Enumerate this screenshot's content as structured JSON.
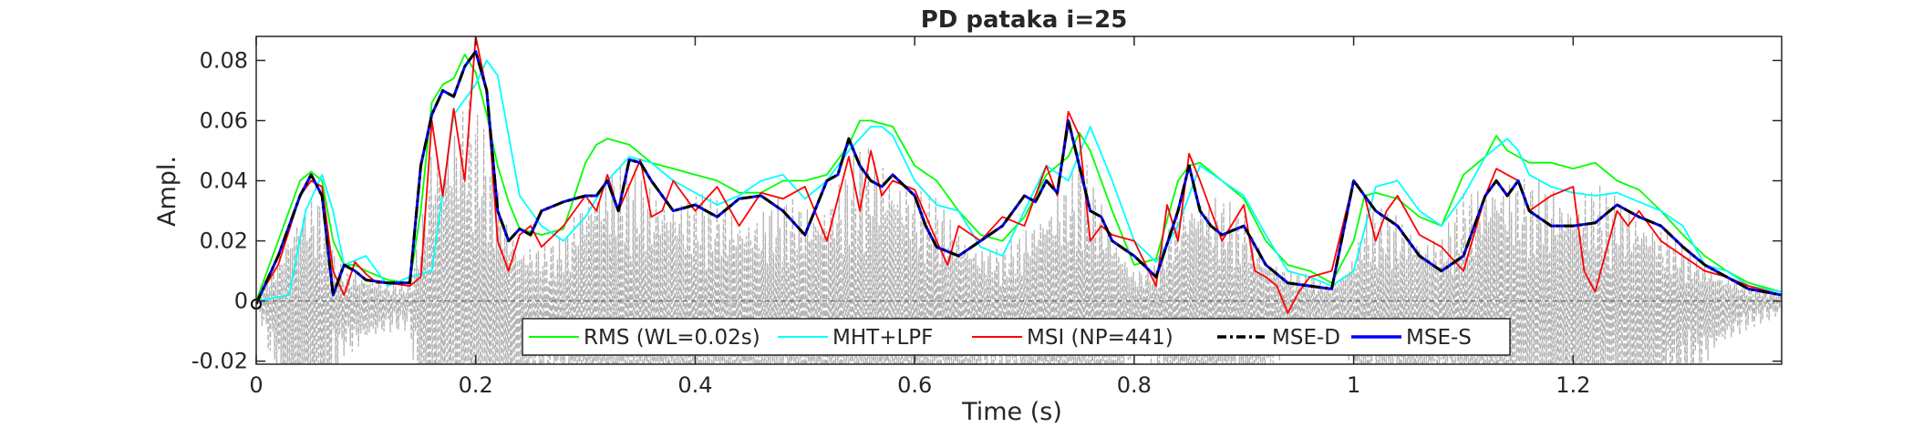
{
  "chart_data": {
    "type": "line",
    "title": "PD pataka i=25",
    "xlabel": "Time (s)",
    "ylabel": "Ampl.",
    "xlim": [
      0,
      1.39
    ],
    "ylim": [
      -0.021,
      0.088
    ],
    "xticks": [
      0,
      0.2,
      0.4,
      0.6,
      0.8,
      1,
      1.2
    ],
    "xtick_labels": [
      "0",
      "0.2",
      "0.4",
      "0.6",
      "0.8",
      "1",
      "1.2"
    ],
    "yticks": [
      -0.02,
      0,
      0.02,
      0.04,
      0.06,
      0.08
    ],
    "ytick_labels": [
      "-0.02",
      "0",
      "0.02",
      "0.04",
      "0.06",
      "0.08"
    ],
    "grid": false,
    "legend_position": "bottom-center",
    "background_signal": {
      "color": "#b4b4b4",
      "style": "dashed",
      "description_units": "amplitude"
    },
    "series": [
      {
        "name": "RMS (WL=0.02s)",
        "color": "#00ff00",
        "style": "solid",
        "x": [
          0,
          0.02,
          0.04,
          0.05,
          0.06,
          0.07,
          0.08,
          0.09,
          0.1,
          0.12,
          0.14,
          0.15,
          0.16,
          0.17,
          0.18,
          0.19,
          0.2,
          0.21,
          0.22,
          0.23,
          0.24,
          0.26,
          0.28,
          0.3,
          0.31,
          0.32,
          0.34,
          0.36,
          0.38,
          0.4,
          0.42,
          0.44,
          0.46,
          0.48,
          0.5,
          0.52,
          0.54,
          0.55,
          0.56,
          0.58,
          0.6,
          0.62,
          0.64,
          0.66,
          0.68,
          0.7,
          0.72,
          0.74,
          0.75,
          0.76,
          0.78,
          0.8,
          0.82,
          0.84,
          0.85,
          0.86,
          0.88,
          0.9,
          0.92,
          0.94,
          0.96,
          0.98,
          1,
          1.01,
          1.02,
          1.04,
          1.06,
          1.08,
          1.1,
          1.12,
          1.13,
          1.14,
          1.16,
          1.18,
          1.2,
          1.22,
          1.24,
          1.26,
          1.28,
          1.3,
          1.32,
          1.34,
          1.36,
          1.39
        ],
        "y": [
          0,
          0.02,
          0.04,
          0.043,
          0.04,
          0.02,
          0.012,
          0.012,
          0.01,
          0.007,
          0.006,
          0.03,
          0.066,
          0.072,
          0.074,
          0.082,
          0.076,
          0.062,
          0.045,
          0.033,
          0.024,
          0.022,
          0.024,
          0.046,
          0.052,
          0.054,
          0.052,
          0.046,
          0.044,
          0.042,
          0.04,
          0.036,
          0.036,
          0.04,
          0.04,
          0.042,
          0.052,
          0.06,
          0.06,
          0.058,
          0.045,
          0.04,
          0.03,
          0.022,
          0.02,
          0.028,
          0.042,
          0.048,
          0.056,
          0.05,
          0.03,
          0.012,
          0.014,
          0.04,
          0.045,
          0.046,
          0.04,
          0.034,
          0.02,
          0.012,
          0.01,
          0.006,
          0.02,
          0.035,
          0.036,
          0.034,
          0.028,
          0.025,
          0.042,
          0.048,
          0.055,
          0.05,
          0.046,
          0.046,
          0.044,
          0.046,
          0.04,
          0.037,
          0.03,
          0.022,
          0.015,
          0.01,
          0.006,
          0.003
        ]
      },
      {
        "name": "MHT+LPF",
        "color": "#00ffff",
        "style": "solid",
        "x": [
          0,
          0.03,
          0.045,
          0.06,
          0.07,
          0.08,
          0.1,
          0.12,
          0.14,
          0.16,
          0.18,
          0.2,
          0.21,
          0.22,
          0.24,
          0.26,
          0.28,
          0.3,
          0.32,
          0.34,
          0.36,
          0.38,
          0.4,
          0.42,
          0.44,
          0.46,
          0.48,
          0.5,
          0.52,
          0.54,
          0.56,
          0.57,
          0.58,
          0.6,
          0.62,
          0.64,
          0.66,
          0.68,
          0.7,
          0.72,
          0.74,
          0.76,
          0.78,
          0.8,
          0.82,
          0.84,
          0.86,
          0.88,
          0.9,
          0.92,
          0.94,
          0.96,
          0.98,
          1,
          1.02,
          1.04,
          1.06,
          1.08,
          1.1,
          1.12,
          1.14,
          1.15,
          1.16,
          1.18,
          1.2,
          1.22,
          1.24,
          1.26,
          1.28,
          1.3,
          1.32,
          1.34,
          1.36,
          1.39
        ],
        "y": [
          0,
          0.002,
          0.03,
          0.042,
          0.03,
          0.012,
          0.015,
          0.005,
          0.008,
          0.01,
          0.062,
          0.072,
          0.08,
          0.075,
          0.035,
          0.025,
          0.02,
          0.028,
          0.04,
          0.048,
          0.046,
          0.04,
          0.036,
          0.032,
          0.035,
          0.04,
          0.042,
          0.034,
          0.04,
          0.05,
          0.058,
          0.058,
          0.055,
          0.04,
          0.032,
          0.03,
          0.018,
          0.015,
          0.03,
          0.045,
          0.04,
          0.058,
          0.04,
          0.02,
          0.013,
          0.025,
          0.045,
          0.04,
          0.035,
          0.022,
          0.01,
          0.008,
          0.005,
          0.01,
          0.038,
          0.04,
          0.03,
          0.025,
          0.035,
          0.048,
          0.054,
          0.05,
          0.042,
          0.038,
          0.036,
          0.035,
          0.036,
          0.033,
          0.03,
          0.025,
          0.012,
          0.01,
          0.005,
          0.003
        ]
      },
      {
        "name": "MSI (NP=441)",
        "color": "#ff0000",
        "style": "solid",
        "x": [
          0,
          0.02,
          0.04,
          0.05,
          0.06,
          0.07,
          0.08,
          0.09,
          0.1,
          0.11,
          0.12,
          0.14,
          0.15,
          0.16,
          0.17,
          0.18,
          0.19,
          0.2,
          0.21,
          0.22,
          0.23,
          0.24,
          0.25,
          0.26,
          0.28,
          0.3,
          0.31,
          0.32,
          0.33,
          0.35,
          0.36,
          0.37,
          0.38,
          0.4,
          0.42,
          0.44,
          0.46,
          0.48,
          0.5,
          0.52,
          0.54,
          0.55,
          0.56,
          0.57,
          0.58,
          0.6,
          0.62,
          0.63,
          0.64,
          0.66,
          0.68,
          0.7,
          0.72,
          0.73,
          0.74,
          0.75,
          0.76,
          0.77,
          0.78,
          0.8,
          0.82,
          0.83,
          0.84,
          0.85,
          0.86,
          0.88,
          0.9,
          0.91,
          0.92,
          0.93,
          0.94,
          0.95,
          0.96,
          0.98,
          1,
          1.01,
          1.02,
          1.03,
          1.04,
          1.06,
          1.08,
          1.1,
          1.12,
          1.13,
          1.14,
          1.15,
          1.16,
          1.18,
          1.2,
          1.21,
          1.22,
          1.24,
          1.25,
          1.26,
          1.28,
          1.3,
          1.32,
          1.34,
          1.36,
          1.39
        ],
        "y": [
          0,
          0.012,
          0.035,
          0.04,
          0.038,
          0.01,
          0.002,
          0.013,
          0.009,
          0.006,
          0.006,
          0.005,
          0.008,
          0.06,
          0.035,
          0.064,
          0.04,
          0.088,
          0.07,
          0.02,
          0.01,
          0.022,
          0.025,
          0.018,
          0.025,
          0.035,
          0.03,
          0.042,
          0.03,
          0.047,
          0.028,
          0.03,
          0.04,
          0.03,
          0.038,
          0.025,
          0.036,
          0.034,
          0.038,
          0.02,
          0.048,
          0.03,
          0.05,
          0.035,
          0.04,
          0.037,
          0.02,
          0.012,
          0.025,
          0.02,
          0.028,
          0.025,
          0.045,
          0.035,
          0.063,
          0.055,
          0.02,
          0.025,
          0.022,
          0.02,
          0.005,
          0.032,
          0.02,
          0.049,
          0.04,
          0.02,
          0.032,
          0.01,
          0.008,
          0.005,
          -0.004,
          0.003,
          0.008,
          0.01,
          0.04,
          0.035,
          0.02,
          0.03,
          0.035,
          0.022,
          0.018,
          0.01,
          0.035,
          0.044,
          0.042,
          0.04,
          0.03,
          0.035,
          0.038,
          0.01,
          0.003,
          0.03,
          0.025,
          0.03,
          0.02,
          0.015,
          0.01,
          0.008,
          0.005,
          0.002
        ]
      },
      {
        "name": "MSE-D",
        "color": "#000000",
        "style": "dashdot",
        "x": [
          0,
          0.02,
          0.04,
          0.05,
          0.06,
          0.07,
          0.08,
          0.09,
          0.1,
          0.12,
          0.14,
          0.15,
          0.16,
          0.17,
          0.18,
          0.19,
          0.2,
          0.21,
          0.22,
          0.23,
          0.24,
          0.25,
          0.26,
          0.28,
          0.3,
          0.31,
          0.32,
          0.33,
          0.34,
          0.35,
          0.36,
          0.37,
          0.38,
          0.4,
          0.42,
          0.44,
          0.46,
          0.48,
          0.5,
          0.52,
          0.53,
          0.54,
          0.55,
          0.56,
          0.57,
          0.58,
          0.6,
          0.61,
          0.62,
          0.64,
          0.66,
          0.68,
          0.7,
          0.71,
          0.72,
          0.73,
          0.74,
          0.75,
          0.76,
          0.77,
          0.78,
          0.8,
          0.82,
          0.84,
          0.85,
          0.86,
          0.87,
          0.88,
          0.9,
          0.92,
          0.94,
          0.96,
          0.98,
          1,
          1.01,
          1.02,
          1.04,
          1.06,
          1.08,
          1.1,
          1.12,
          1.13,
          1.14,
          1.15,
          1.16,
          1.18,
          1.2,
          1.22,
          1.24,
          1.26,
          1.28,
          1.3,
          1.32,
          1.34,
          1.36,
          1.39
        ],
        "y": [
          -0.001,
          0.015,
          0.035,
          0.042,
          0.035,
          0.002,
          0.012,
          0.01,
          0.007,
          0.006,
          0.006,
          0.045,
          0.062,
          0.07,
          0.068,
          0.078,
          0.083,
          0.07,
          0.03,
          0.02,
          0.024,
          0.022,
          0.03,
          0.033,
          0.035,
          0.035,
          0.04,
          0.03,
          0.047,
          0.046,
          0.04,
          0.035,
          0.03,
          0.032,
          0.028,
          0.034,
          0.035,
          0.03,
          0.022,
          0.04,
          0.042,
          0.054,
          0.045,
          0.04,
          0.038,
          0.042,
          0.035,
          0.025,
          0.018,
          0.015,
          0.02,
          0.025,
          0.035,
          0.033,
          0.04,
          0.036,
          0.06,
          0.045,
          0.03,
          0.028,
          0.02,
          0.015,
          0.008,
          0.03,
          0.045,
          0.03,
          0.025,
          0.022,
          0.025,
          0.012,
          0.006,
          0.005,
          0.004,
          0.04,
          0.035,
          0.03,
          0.025,
          0.015,
          0.01,
          0.015,
          0.035,
          0.04,
          0.035,
          0.04,
          0.03,
          0.025,
          0.025,
          0.026,
          0.032,
          0.028,
          0.025,
          0.018,
          0.012,
          0.008,
          0.004,
          0.002
        ]
      },
      {
        "name": "MSE-S",
        "color": "#0000ff",
        "style": "solid",
        "x": [
          0,
          0.02,
          0.04,
          0.05,
          0.06,
          0.07,
          0.08,
          0.09,
          0.1,
          0.12,
          0.14,
          0.15,
          0.16,
          0.17,
          0.18,
          0.19,
          0.2,
          0.21,
          0.22,
          0.23,
          0.24,
          0.25,
          0.26,
          0.28,
          0.3,
          0.31,
          0.32,
          0.33,
          0.34,
          0.35,
          0.36,
          0.37,
          0.38,
          0.4,
          0.42,
          0.44,
          0.46,
          0.48,
          0.5,
          0.52,
          0.53,
          0.54,
          0.55,
          0.56,
          0.57,
          0.58,
          0.6,
          0.61,
          0.62,
          0.64,
          0.66,
          0.68,
          0.7,
          0.71,
          0.72,
          0.73,
          0.74,
          0.75,
          0.76,
          0.77,
          0.78,
          0.8,
          0.82,
          0.84,
          0.85,
          0.86,
          0.87,
          0.88,
          0.9,
          0.92,
          0.94,
          0.96,
          0.98,
          1,
          1.01,
          1.02,
          1.04,
          1.06,
          1.08,
          1.1,
          1.12,
          1.13,
          1.14,
          1.15,
          1.16,
          1.18,
          1.2,
          1.22,
          1.24,
          1.26,
          1.28,
          1.3,
          1.32,
          1.34,
          1.36,
          1.39
        ],
        "y": [
          -0.001,
          0.015,
          0.035,
          0.042,
          0.035,
          0.002,
          0.012,
          0.01,
          0.007,
          0.006,
          0.006,
          0.045,
          0.062,
          0.07,
          0.068,
          0.078,
          0.083,
          0.07,
          0.03,
          0.02,
          0.024,
          0.022,
          0.03,
          0.033,
          0.035,
          0.035,
          0.04,
          0.03,
          0.047,
          0.046,
          0.04,
          0.035,
          0.03,
          0.032,
          0.028,
          0.034,
          0.035,
          0.03,
          0.022,
          0.04,
          0.042,
          0.054,
          0.045,
          0.04,
          0.038,
          0.042,
          0.035,
          0.025,
          0.018,
          0.015,
          0.02,
          0.025,
          0.035,
          0.033,
          0.04,
          0.036,
          0.06,
          0.045,
          0.03,
          0.028,
          0.02,
          0.015,
          0.008,
          0.03,
          0.045,
          0.03,
          0.025,
          0.022,
          0.025,
          0.012,
          0.006,
          0.005,
          0.004,
          0.04,
          0.035,
          0.03,
          0.025,
          0.015,
          0.01,
          0.015,
          0.035,
          0.04,
          0.035,
          0.04,
          0.03,
          0.025,
          0.025,
          0.026,
          0.032,
          0.028,
          0.025,
          0.018,
          0.012,
          0.008,
          0.004,
          0.002
        ]
      }
    ]
  }
}
